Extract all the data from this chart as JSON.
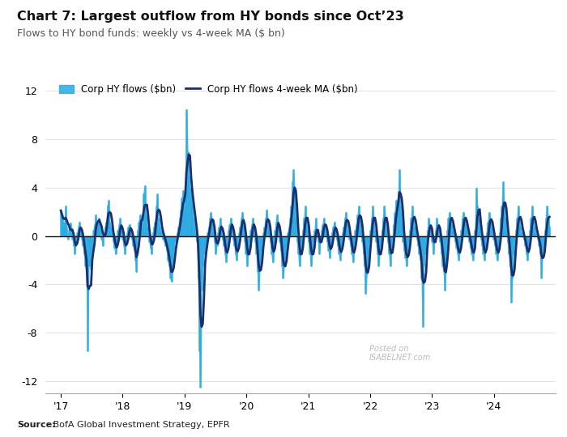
{
  "title": "Chart 7: Largest outflow from HY bonds since Oct’23",
  "subtitle": "Flows to HY bond funds: weekly vs 4-week MA ($ bn)",
  "source_bold": "Source:",
  "source_rest": " BofA Global Investment Strategy, EPFR",
  "ylim": [
    -13,
    13
  ],
  "yticks": [
    -12,
    -8,
    -4,
    0,
    4,
    8,
    12
  ],
  "xlim": [
    2016.75,
    2025.0
  ],
  "xtick_labels": [
    "'17",
    "'18",
    "'19",
    "'20",
    "'21",
    "'22",
    "'23",
    "'24"
  ],
  "xtick_positions": [
    2017.0,
    2018.0,
    2019.0,
    2020.0,
    2021.0,
    2022.0,
    2023.0,
    2024.0
  ],
  "bar_color": "#29ABE2",
  "ma_color": "#1B2F6E",
  "background_color": "#FFFFFF",
  "legend_bar_label": "Corp HY flows ($bn)",
  "legend_ma_label": "Corp HY flows 4-week MA ($bn)",
  "t_start": 2017.0,
  "t_end": 2024.9,
  "weekly_data": [
    2.1,
    1.5,
    0.8,
    1.2,
    2.5,
    0.8,
    -0.3,
    0.5,
    1.1,
    0.7,
    -0.3,
    -0.8,
    -1.5,
    -0.5,
    0.3,
    0.8,
    1.2,
    0.5,
    -0.3,
    -0.8,
    -1.5,
    -2.5,
    -3.0,
    -9.5,
    -2.5,
    -1.5,
    -2.8,
    -1.2,
    0.5,
    1.0,
    1.8,
    0.8,
    1.2,
    1.5,
    0.8,
    -0.3,
    -0.8,
    0.3,
    0.8,
    1.2,
    2.5,
    3.0,
    1.2,
    0.8,
    0.3,
    -0.5,
    -1.0,
    -1.5,
    -0.8,
    0.5,
    1.0,
    1.5,
    0.5,
    -0.3,
    -0.8,
    -1.5,
    -0.5,
    0.3,
    0.8,
    1.0,
    0.5,
    -0.3,
    -0.8,
    -1.2,
    -2.0,
    -3.0,
    0.5,
    1.2,
    1.8,
    1.5,
    0.8,
    3.5,
    4.2,
    1.8,
    0.8,
    0.3,
    -0.5,
    -1.0,
    -1.5,
    0.3,
    0.8,
    1.2,
    2.5,
    3.5,
    1.5,
    0.8,
    0.5,
    0.3,
    -0.3,
    -0.5,
    -0.8,
    -1.2,
    -2.0,
    -2.5,
    -3.5,
    -3.8,
    -2.0,
    -1.2,
    -0.5,
    -0.3,
    0.3,
    0.8,
    1.5,
    2.2,
    3.2,
    3.8,
    2.5,
    4.5,
    10.5,
    7.0,
    5.0,
    4.0,
    3.5,
    2.5,
    1.5,
    0.8,
    0.3,
    -0.5,
    -3.5,
    -9.5,
    -12.5,
    -4.5,
    -2.5,
    -1.5,
    -0.8,
    -0.5,
    0.3,
    0.8,
    1.5,
    2.0,
    1.2,
    0.5,
    -0.5,
    -1.5,
    -0.8,
    0.3,
    0.8,
    1.5,
    0.5,
    -0.3,
    -0.8,
    -1.5,
    -2.2,
    -1.0,
    0.5,
    1.0,
    1.5,
    0.8,
    -0.3,
    -0.8,
    -1.5,
    -2.0,
    -0.8,
    0.3,
    0.8,
    1.5,
    2.0,
    1.0,
    -0.5,
    -1.5,
    -2.5,
    -1.5,
    -0.5,
    0.5,
    1.0,
    1.5,
    0.8,
    -0.5,
    -1.5,
    -3.0,
    -4.5,
    -2.5,
    -1.2,
    -0.5,
    0.3,
    0.8,
    1.5,
    2.2,
    1.0,
    0.3,
    -0.5,
    -1.5,
    -2.2,
    -1.0,
    0.5,
    1.2,
    1.8,
    0.8,
    -0.5,
    -1.2,
    -2.5,
    -3.5,
    -2.5,
    -1.5,
    -0.8,
    0.3,
    0.8,
    1.5,
    2.5,
    4.5,
    5.5,
    3.5,
    1.5,
    -0.5,
    -1.5,
    -2.5,
    -1.5,
    -0.5,
    0.5,
    1.5,
    2.5,
    1.5,
    0.5,
    -0.5,
    -1.5,
    -2.5,
    -1.5,
    -0.5,
    0.5,
    1.5,
    0.5,
    -0.5,
    -1.5,
    -0.5,
    0.5,
    1.0,
    1.5,
    0.8,
    0.3,
    -0.5,
    -1.2,
    -1.8,
    -0.8,
    0.3,
    0.8,
    1.2,
    0.5,
    -0.3,
    -0.8,
    -1.5,
    -2.0,
    -1.0,
    0.3,
    0.8,
    1.5,
    2.0,
    1.0,
    0.5,
    -0.3,
    -0.8,
    -1.5,
    -2.2,
    -1.0,
    0.5,
    1.0,
    1.8,
    2.5,
    1.5,
    0.5,
    -0.5,
    -1.5,
    -2.5,
    -4.8,
    -3.2,
    -1.5,
    -0.5,
    0.5,
    1.5,
    2.5,
    1.5,
    0.5,
    -0.5,
    -1.5,
    -2.5,
    -1.5,
    -0.5,
    0.5,
    1.5,
    2.5,
    1.5,
    0.5,
    -0.5,
    -1.5,
    -2.5,
    -1.2,
    -0.3,
    1.0,
    2.0,
    3.0,
    2.5,
    3.5,
    5.5,
    2.5,
    1.0,
    -0.5,
    -1.2,
    -1.8,
    -2.5,
    -1.5,
    -0.5,
    0.5,
    1.5,
    2.5,
    1.5,
    0.8,
    0.3,
    -0.3,
    -0.8,
    -1.5,
    -2.0,
    -3.5,
    -7.5,
    -2.5,
    -1.5,
    -0.5,
    0.5,
    1.5,
    1.0,
    0.5,
    -0.5,
    -1.5,
    -0.5,
    0.5,
    1.5,
    1.0,
    0.5,
    -0.5,
    -1.5,
    -2.5,
    -3.0,
    -4.5,
    -2.0,
    0.5,
    1.5,
    2.0,
    1.5,
    1.0,
    0.5,
    0.0,
    -0.5,
    -1.0,
    -1.5,
    -2.0,
    -1.0,
    0.5,
    1.5,
    2.0,
    1.5,
    1.0,
    0.5,
    0.0,
    -0.5,
    -1.0,
    -1.5,
    -2.0,
    -1.0,
    0.5,
    4.0,
    2.5,
    1.5,
    0.8,
    -0.3,
    -0.8,
    -1.5,
    -2.0,
    -1.2,
    0.3,
    1.2,
    2.0,
    1.5,
    0.8,
    0.3,
    -0.3,
    -0.8,
    -1.5,
    -2.0,
    -1.2,
    0.3,
    1.5,
    2.5,
    4.5,
    2.5,
    1.5,
    0.5,
    -0.5,
    -1.5,
    -2.5,
    -5.5,
    -3.5,
    -1.5,
    -0.5,
    0.5,
    1.5,
    2.5,
    1.5,
    0.8,
    0.3,
    0.0,
    -0.3,
    -0.8,
    -1.5,
    -2.0,
    -1.0,
    0.5,
    1.5,
    2.5,
    1.5,
    0.8,
    0.3,
    0.0,
    -0.3,
    -0.8,
    -1.5,
    -3.5,
    -1.5,
    -0.5,
    0.5,
    1.5,
    2.5,
    1.5,
    0.8
  ]
}
